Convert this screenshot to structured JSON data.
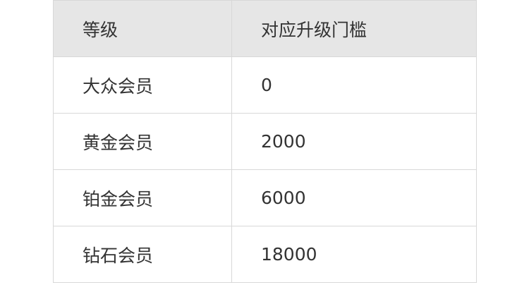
{
  "table": {
    "headers": [
      "等级",
      "对应升级门槛"
    ],
    "rows": [
      [
        "大众会员",
        "0"
      ],
      [
        "黄金会员",
        "2000"
      ],
      [
        "铂金会员",
        "6000"
      ],
      [
        "钻石会员",
        "18000"
      ]
    ]
  }
}
